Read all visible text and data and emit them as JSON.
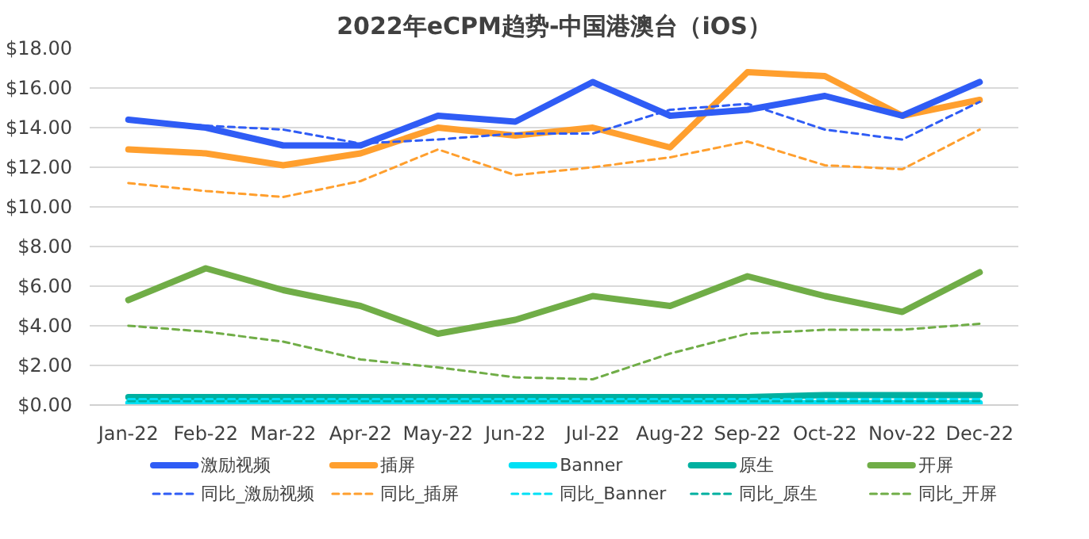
{
  "chart_data": {
    "type": "line",
    "title": "2022年eCPM趋势-中国港澳台（iOS）",
    "categories": [
      "Jan-22",
      "Feb-22",
      "Mar-22",
      "Apr-22",
      "May-22",
      "Jun-22",
      "Jul-22",
      "Aug-22",
      "Sep-22",
      "Oct-22",
      "Nov-22",
      "Dec-22"
    ],
    "ylim": [
      0,
      18
    ],
    "yticks": [
      {
        "value": 0,
        "label": "$0.00"
      },
      {
        "value": 2,
        "label": "$2.00"
      },
      {
        "value": 4,
        "label": "$4.00"
      },
      {
        "value": 6,
        "label": "$6.00"
      },
      {
        "value": 8,
        "label": "$8.00"
      },
      {
        "value": 10,
        "label": "$10.00"
      },
      {
        "value": 12,
        "label": "$12.00"
      },
      {
        "value": 14,
        "label": "$14.00"
      },
      {
        "value": 16,
        "label": "$16.00"
      },
      {
        "value": 18,
        "label": "$18.00"
      }
    ],
    "grid": "y",
    "legend": "bottom",
    "series": [
      {
        "name": "激励视频",
        "color": "#2f5cf5",
        "line_style": "solid",
        "values": [
          14.4,
          14.0,
          13.1,
          13.1,
          14.6,
          14.3,
          16.3,
          14.6,
          14.9,
          15.6,
          14.6,
          16.3
        ]
      },
      {
        "name": "插屏",
        "color": "#ff9f2e",
        "line_style": "solid",
        "values": [
          12.9,
          12.7,
          12.1,
          12.7,
          14.0,
          13.6,
          14.0,
          13.0,
          16.8,
          16.6,
          14.6,
          15.4
        ]
      },
      {
        "name": "Banner",
        "color": "#00e0f5",
        "line_style": "solid",
        "values": [
          0.1,
          0.1,
          0.1,
          0.1,
          0.1,
          0.1,
          0.1,
          0.1,
          0.1,
          0.1,
          0.1,
          0.1
        ]
      },
      {
        "name": "原生",
        "color": "#00b0a0",
        "line_style": "solid",
        "values": [
          0.4,
          0.4,
          0.4,
          0.4,
          0.4,
          0.4,
          0.4,
          0.4,
          0.4,
          0.5,
          0.5,
          0.5
        ]
      },
      {
        "name": "开屏",
        "color": "#70ad47",
        "line_style": "solid",
        "values": [
          5.3,
          6.9,
          5.8,
          5.0,
          3.6,
          4.3,
          5.5,
          5.0,
          6.5,
          5.5,
          4.7,
          6.7
        ]
      },
      {
        "name": "同比_激励视频",
        "color": "#2f5cf5",
        "line_style": "dashed",
        "values": [
          14.4,
          14.1,
          13.9,
          13.2,
          13.4,
          13.7,
          13.7,
          14.9,
          15.2,
          13.9,
          13.4,
          15.3
        ]
      },
      {
        "name": "同比_插屏",
        "color": "#ff9f2e",
        "line_style": "dashed",
        "values": [
          11.2,
          10.8,
          10.5,
          11.3,
          12.9,
          11.6,
          12.0,
          12.5,
          13.3,
          12.1,
          11.9,
          13.9
        ]
      },
      {
        "name": "同比_Banner",
        "color": "#00e0f5",
        "line_style": "dashed",
        "values": [
          0.3,
          0.3,
          0.3,
          0.3,
          0.3,
          0.3,
          0.3,
          0.3,
          0.3,
          0.3,
          0.3,
          0.3
        ]
      },
      {
        "name": "同比_原生",
        "color": "#00b0a0",
        "line_style": "dashed",
        "values": [
          0.2,
          0.2,
          0.2,
          0.2,
          0.2,
          0.2,
          0.2,
          0.2,
          0.2,
          0.2,
          0.2,
          0.2
        ]
      },
      {
        "name": "同比_开屏",
        "color": "#70ad47",
        "line_style": "dashed",
        "values": [
          4.0,
          3.7,
          3.2,
          2.3,
          1.9,
          1.4,
          1.3,
          2.6,
          3.6,
          3.8,
          3.8,
          4.1
        ]
      }
    ]
  }
}
